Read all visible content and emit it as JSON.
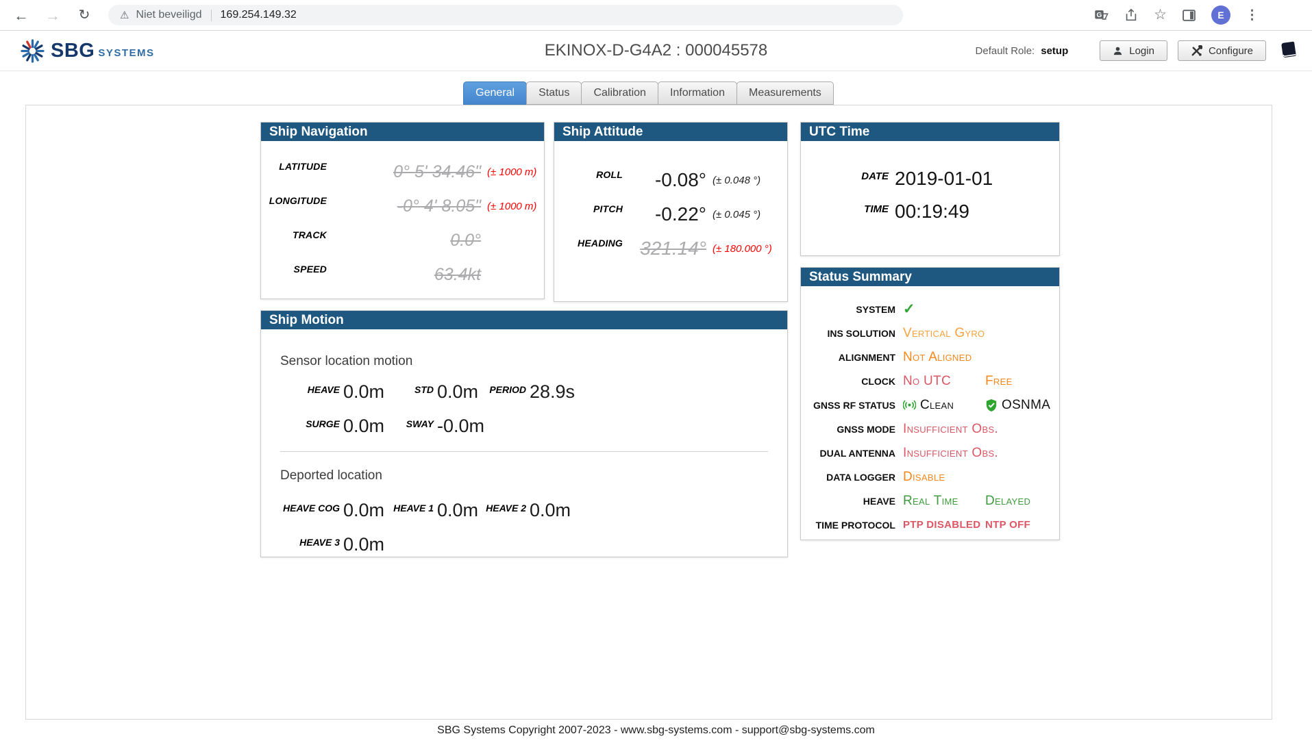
{
  "palette": {
    "header_blue": "#1E5780",
    "tab_blue": "#4A8FD6",
    "orange": "#F8871B",
    "orange_light": "#F9A13C",
    "crimson": "#DC5664",
    "green": "#3E9B3E",
    "check_green": "#2EA52E",
    "invalid": "#ABABAE",
    "error_red": "#FF0000",
    "avatar_purple": "#6070D4"
  },
  "browser": {
    "security_label": "Niet beveiligd",
    "url": "169.254.149.32",
    "avatar_letter": "E",
    "icons": {
      "back": "←",
      "forward": "→",
      "reload": "↻",
      "warning": "⚠",
      "star": "☆",
      "menu": "⋮"
    }
  },
  "header": {
    "brand": "SBG",
    "brand_suffix": "SYSTEMS",
    "title": "EKINOX-D-G4A2 : 000045578",
    "role_label": "Default Role:",
    "role_value": "setup",
    "login_label": "Login",
    "configure_label": "Configure"
  },
  "tabs": [
    {
      "label": "General",
      "active": true
    },
    {
      "label": "Status",
      "active": false
    },
    {
      "label": "Calibration",
      "active": false
    },
    {
      "label": "Information",
      "active": false
    },
    {
      "label": "Measurements",
      "active": false
    }
  ],
  "panels": {
    "ship_navigation": {
      "title": "Ship Navigation",
      "rows": [
        {
          "label": "LATITUDE",
          "value": "0° 5' 34.46\"",
          "invalid": true,
          "accuracy": "(± 1000 m)",
          "accuracy_color": "red"
        },
        {
          "label": "LONGITUDE",
          "value": "-0° 4' 8.05\"",
          "invalid": true,
          "accuracy": "(± 1000 m)",
          "accuracy_color": "red"
        },
        {
          "label": "TRACK",
          "value": "0.0°",
          "invalid": true
        },
        {
          "label": "SPEED",
          "value": "63.4kt",
          "invalid": true
        }
      ]
    },
    "ship_attitude": {
      "title": "Ship Attitude",
      "rows": [
        {
          "label": "ROLL",
          "value": "-0.08°",
          "invalid": false,
          "accuracy": "(± 0.048 °)",
          "accuracy_color": "black"
        },
        {
          "label": "PITCH",
          "value": "-0.22°",
          "invalid": false,
          "accuracy": "(± 0.045 °)",
          "accuracy_color": "black"
        },
        {
          "label": "HEADING",
          "value": "321.14°",
          "invalid": true,
          "accuracy": "(± 180.000 °)",
          "accuracy_color": "red"
        }
      ]
    },
    "utc_time": {
      "title": "UTC Time",
      "rows": [
        {
          "label": "DATE",
          "value": "2019-01-01"
        },
        {
          "label": "TIME",
          "value": "00:19:49"
        }
      ]
    },
    "status_summary": {
      "title": "Status Summary",
      "rows": [
        {
          "label": "SYSTEM",
          "values": [
            {
              "icon": "check"
            }
          ]
        },
        {
          "label": "INS SOLUTION",
          "values": [
            {
              "text": "Vertical Gyro",
              "color": "orange-light"
            }
          ]
        },
        {
          "label": "ALIGNMENT",
          "values": [
            {
              "text": "Not Aligned",
              "color": "orange"
            }
          ]
        },
        {
          "label": "CLOCK",
          "values": [
            {
              "text": "No UTC",
              "color": "crimson"
            },
            {
              "text": "Free",
              "color": "orange"
            }
          ]
        },
        {
          "label": "GNSS RF STATUS",
          "values": [
            {
              "icon": "signal",
              "text": "Clean",
              "color": "black"
            },
            {
              "icon": "shield",
              "text": "OSNMA",
              "color": "black"
            }
          ]
        },
        {
          "label": "GNSS MODE",
          "values": [
            {
              "text": "Insufficient Obs.",
              "color": "crimson"
            }
          ]
        },
        {
          "label": "DUAL ANTENNA",
          "values": [
            {
              "text": "Insufficient Obs.",
              "color": "crimson"
            }
          ]
        },
        {
          "label": "DATA LOGGER",
          "values": [
            {
              "text": "Disable",
              "color": "orange"
            }
          ]
        },
        {
          "label": "HEAVE",
          "values": [
            {
              "text": "Real Time",
              "color": "green"
            },
            {
              "text": "Delayed",
              "color": "green"
            }
          ]
        },
        {
          "label": "TIME PROTOCOL",
          "values": [
            {
              "text": "PTP Disabled",
              "color": "crimson",
              "style": "caps"
            },
            {
              "text": "NTP Off",
              "color": "crimson",
              "style": "caps"
            }
          ]
        }
      ]
    },
    "ship_motion": {
      "title": "Ship Motion",
      "sections": [
        {
          "title": "Sensor location motion",
          "rows": [
            [
              {
                "label": "HEAVE",
                "value": "0.0m"
              },
              {
                "label": "STD",
                "value": "0.0m"
              },
              {
                "label": "PERIOD",
                "value": "28.9s"
              }
            ],
            [
              {
                "label": "SURGE",
                "value": "0.0m"
              },
              {
                "label": "SWAY",
                "value": "-0.0m"
              }
            ]
          ]
        },
        {
          "title": "Deported location",
          "rows": [
            [
              {
                "label": "HEAVE COG",
                "value": "0.0m"
              },
              {
                "label": "HEAVE 1",
                "value": "0.0m"
              },
              {
                "label": "HEAVE 2",
                "value": "0.0m"
              }
            ],
            [
              {
                "label": "HEAVE 3",
                "value": "0.0m"
              }
            ]
          ]
        }
      ]
    }
  },
  "footer": {
    "text": "SBG Systems Copyright 2007-2023 - www.sbg-systems.com - support@sbg-systems.com"
  }
}
